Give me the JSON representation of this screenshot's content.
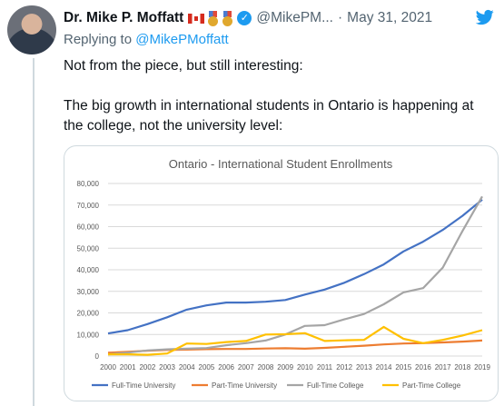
{
  "tweet": {
    "author_name": "Dr. Mike P. Moffatt",
    "handle": "@MikePM...",
    "separator": "·",
    "date": "May 31, 2021",
    "replying_prefix": "Replying to ",
    "replying_handle": "@MikePMoffatt",
    "text": "Not from the piece, but still interesting:\n\nThe big growth in international students in Ontario is happening at the college, not the university level:",
    "icons": [
      "canada-flag-icon",
      "medal-icon",
      "medal-icon",
      "verified-icon",
      "twitter-bird-icon"
    ],
    "colors": {
      "accent": "#1d9bf0",
      "muted": "#536471"
    }
  },
  "chart_data": {
    "type": "line",
    "title": "Ontario - International Student Enrollments",
    "x": [
      "2000",
      "2001",
      "2002",
      "2003",
      "2004",
      "2005",
      "2006",
      "2007",
      "2008",
      "2009",
      "2010",
      "2011",
      "2012",
      "2013",
      "2014",
      "2015",
      "2016",
      "2017",
      "2018",
      "2019"
    ],
    "yticks": [
      "0",
      "10,000",
      "20,000",
      "30,000",
      "40,000",
      "50,000",
      "60,000",
      "70,000",
      "80,000"
    ],
    "ylim": [
      0,
      80000
    ],
    "grid": true,
    "legend_position": "bottom",
    "series": [
      {
        "name": "Full-Time University",
        "color": "#4472c4",
        "values": [
          10500,
          12000,
          14800,
          18000,
          21500,
          23500,
          24800,
          24800,
          25200,
          26000,
          28500,
          30800,
          34000,
          38000,
          42500,
          48500,
          53000,
          58500,
          65000,
          72500
        ]
      },
      {
        "name": "Part-Time University",
        "color": "#ed7d31",
        "values": [
          1500,
          2000,
          2500,
          2800,
          3000,
          3200,
          3300,
          3300,
          3500,
          3600,
          3400,
          3800,
          4300,
          4800,
          5400,
          5800,
          6000,
          6300,
          6700,
          7200
        ]
      },
      {
        "name": "Full-Time College",
        "color": "#a5a5a5",
        "values": [
          800,
          1600,
          2600,
          3100,
          3400,
          3700,
          5000,
          6000,
          7200,
          10000,
          14000,
          14300,
          17000,
          19500,
          24000,
          29500,
          31500,
          41000,
          58000,
          74000
        ]
      },
      {
        "name": "Part-Time College",
        "color": "#ffc000",
        "values": [
          800,
          800,
          600,
          1200,
          5800,
          5600,
          6500,
          7000,
          10000,
          10100,
          10600,
          7000,
          7300,
          7500,
          13500,
          8000,
          6000,
          7500,
          9500,
          12000
        ]
      }
    ]
  }
}
